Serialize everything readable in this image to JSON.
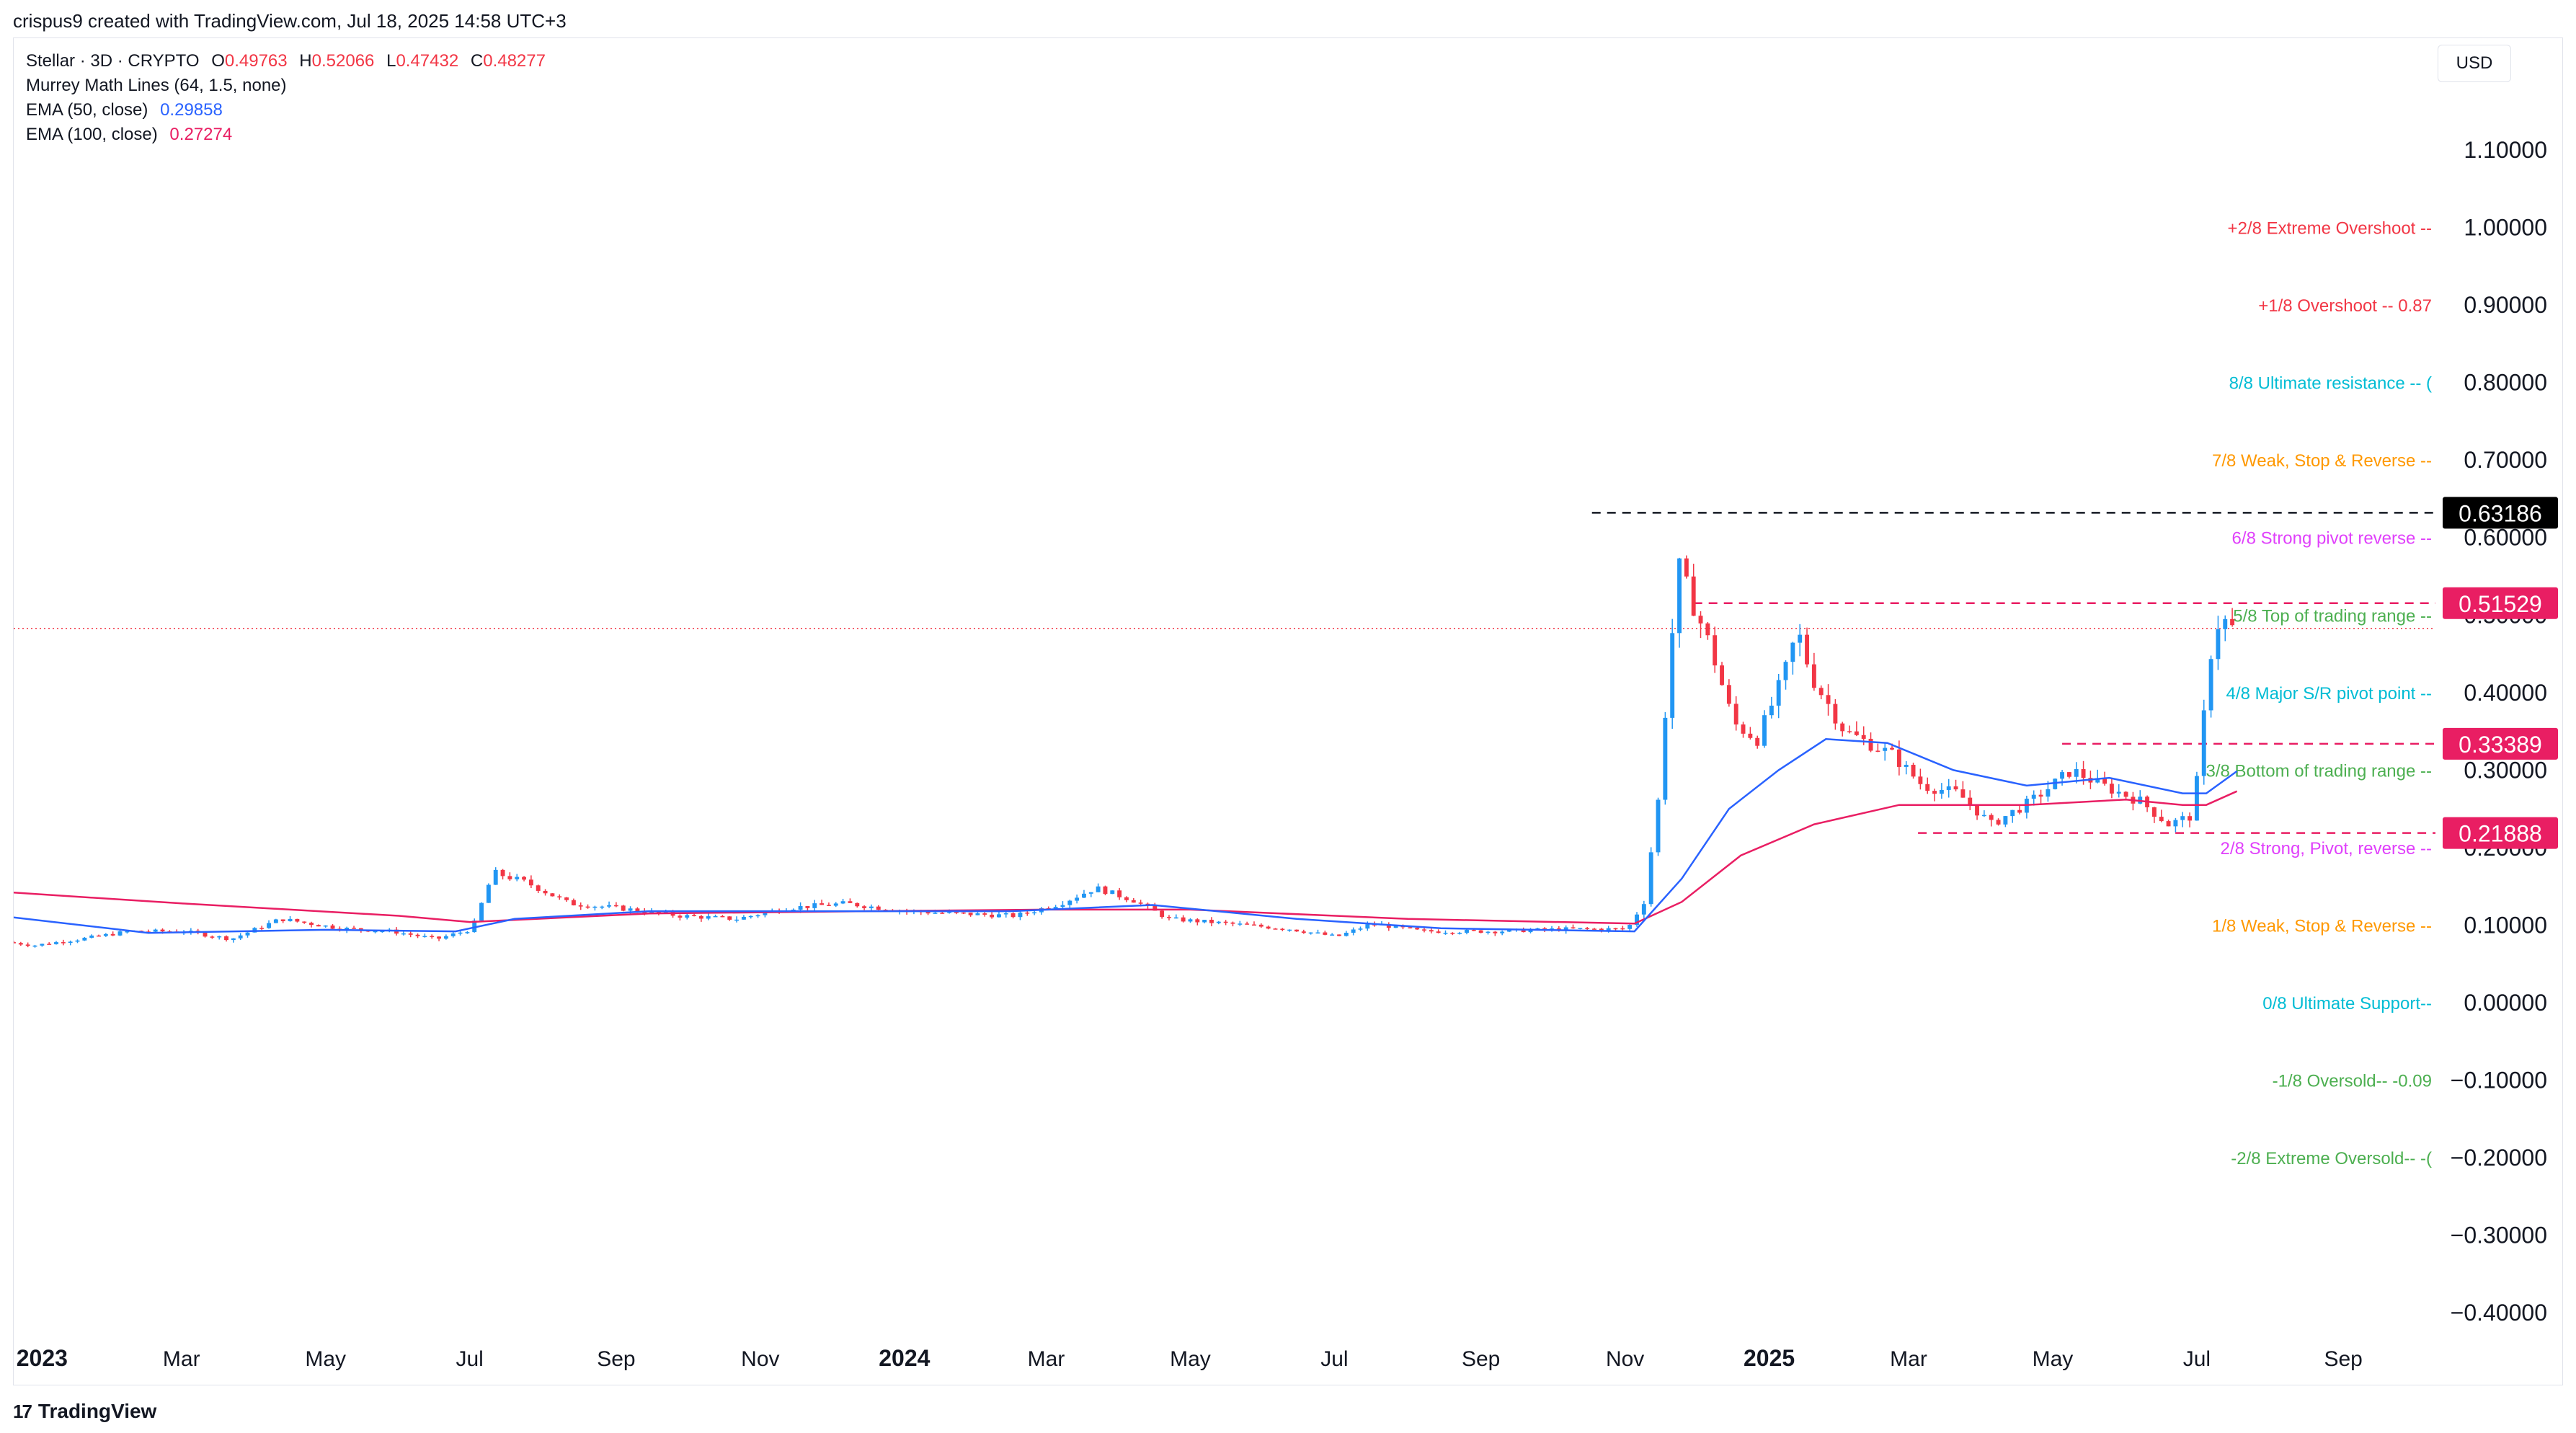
{
  "header": {
    "text": "crispus9 created with TradingView.com, Jul 18, 2025 14:58 UTC+3"
  },
  "legend": {
    "symbol": {
      "label": "Stellar · 3D · CRYPTO",
      "o_label": "O",
      "o": "0.49763",
      "h_label": "H",
      "h": "0.52066",
      "l_label": "L",
      "l": "0.47432",
      "c_label": "C",
      "c": "0.48277"
    },
    "murrey": {
      "label": "Murrey Math Lines (64, 1.5, none)"
    },
    "ema50": {
      "label": "EMA (50, close)",
      "value": "0.29858",
      "color": "#2962ff"
    },
    "ema100": {
      "label": "EMA (100, close)",
      "value": "0.27274",
      "color": "#e91e63"
    }
  },
  "currency": "USD",
  "footer": {
    "logo": "17",
    "brand": "TradingView"
  },
  "chart_data": {
    "type": "candlestick",
    "y_range": [
      -0.43,
      1.2
    ],
    "y_ticks": [
      "1.10000",
      "1.00000",
      "0.90000",
      "0.80000",
      "0.70000",
      "0.60000",
      "0.50000",
      "0.40000",
      "0.30000",
      "0.20000",
      "0.10000",
      "0.00000",
      "−0.10000",
      "−0.20000",
      "−0.30000",
      "−0.40000"
    ],
    "y_tick_values": [
      1.1,
      1.0,
      0.9,
      0.8,
      0.7,
      0.6,
      0.5,
      0.4,
      0.3,
      0.2,
      0.1,
      0.0,
      -0.1,
      -0.2,
      -0.3,
      -0.4
    ],
    "x_range": [
      "2022-12-20",
      "2025-10-10"
    ],
    "x_ticks": [
      {
        "label": "2023",
        "date": "2023-01-01",
        "bold": true
      },
      {
        "label": "Mar",
        "date": "2023-03-01"
      },
      {
        "label": "May",
        "date": "2023-05-01"
      },
      {
        "label": "Jul",
        "date": "2023-07-01"
      },
      {
        "label": "Sep",
        "date": "2023-09-01"
      },
      {
        "label": "Nov",
        "date": "2023-11-01"
      },
      {
        "label": "2024",
        "date": "2024-01-01",
        "bold": true
      },
      {
        "label": "Mar",
        "date": "2024-03-01"
      },
      {
        "label": "May",
        "date": "2024-05-01"
      },
      {
        "label": "Jul",
        "date": "2024-07-01"
      },
      {
        "label": "Sep",
        "date": "2024-09-01"
      },
      {
        "label": "Nov",
        "date": "2024-11-01"
      },
      {
        "label": "2025",
        "date": "2025-01-01",
        "bold": true
      },
      {
        "label": "Mar",
        "date": "2025-03-01"
      },
      {
        "label": "May",
        "date": "2025-05-01"
      },
      {
        "label": "Jul",
        "date": "2025-07-01"
      },
      {
        "label": "Sep",
        "date": "2025-09-01"
      }
    ],
    "price_points": [
      [
        "2022-12-20",
        0.078
      ],
      [
        "2023-01-01",
        0.074
      ],
      [
        "2023-01-20",
        0.082
      ],
      [
        "2023-02-10",
        0.092
      ],
      [
        "2023-03-05",
        0.092
      ],
      [
        "2023-03-25",
        0.082
      ],
      [
        "2023-04-15",
        0.108
      ],
      [
        "2023-05-10",
        0.096
      ],
      [
        "2023-06-01",
        0.092
      ],
      [
        "2023-06-20",
        0.082
      ],
      [
        "2023-07-05",
        0.095
      ],
      [
        "2023-07-14",
        0.168
      ],
      [
        "2023-07-28",
        0.155
      ],
      [
        "2023-08-15",
        0.128
      ],
      [
        "2023-09-05",
        0.122
      ],
      [
        "2023-10-01",
        0.112
      ],
      [
        "2023-10-25",
        0.108
      ],
      [
        "2023-11-15",
        0.122
      ],
      [
        "2023-12-10",
        0.128
      ],
      [
        "2024-01-05",
        0.118
      ],
      [
        "2024-01-25",
        0.115
      ],
      [
        "2024-02-20",
        0.112
      ],
      [
        "2024-03-10",
        0.128
      ],
      [
        "2024-03-25",
        0.148
      ],
      [
        "2024-04-10",
        0.132
      ],
      [
        "2024-04-25",
        0.108
      ],
      [
        "2024-05-20",
        0.102
      ],
      [
        "2024-06-15",
        0.095
      ],
      [
        "2024-07-05",
        0.085
      ],
      [
        "2024-07-20",
        0.102
      ],
      [
        "2024-08-10",
        0.092
      ],
      [
        "2024-09-10",
        0.092
      ],
      [
        "2024-10-10",
        0.095
      ],
      [
        "2024-11-05",
        0.095
      ],
      [
        "2024-11-12",
        0.13
      ],
      [
        "2024-11-18",
        0.26
      ],
      [
        "2024-11-23",
        0.45
      ],
      [
        "2024-11-27",
        0.56
      ],
      [
        "2024-12-02",
        0.52
      ],
      [
        "2024-12-10",
        0.46
      ],
      [
        "2024-12-20",
        0.36
      ],
      [
        "2024-12-30",
        0.34
      ],
      [
        "2025-01-10",
        0.42
      ],
      [
        "2025-01-16",
        0.48
      ],
      [
        "2025-01-22",
        0.42
      ],
      [
        "2025-02-05",
        0.35
      ],
      [
        "2025-02-25",
        0.32
      ],
      [
        "2025-03-10",
        0.28
      ],
      [
        "2025-03-25",
        0.27
      ],
      [
        "2025-04-08",
        0.23
      ],
      [
        "2025-04-25",
        0.26
      ],
      [
        "2025-05-12",
        0.3
      ],
      [
        "2025-05-25",
        0.28
      ],
      [
        "2025-06-10",
        0.26
      ],
      [
        "2025-06-22",
        0.23
      ],
      [
        "2025-07-01",
        0.24
      ],
      [
        "2025-07-05",
        0.3
      ],
      [
        "2025-07-09",
        0.44
      ],
      [
        "2025-07-14",
        0.5
      ],
      [
        "2025-07-18",
        0.48277
      ]
    ],
    "ema50": [
      [
        "2022-12-20",
        0.11
      ],
      [
        "2023-02-15",
        0.09
      ],
      [
        "2023-05-01",
        0.094
      ],
      [
        "2023-06-25",
        0.092
      ],
      [
        "2023-07-20",
        0.108
      ],
      [
        "2023-09-15",
        0.118
      ],
      [
        "2023-12-01",
        0.118
      ],
      [
        "2024-02-15",
        0.118
      ],
      [
        "2024-04-15",
        0.126
      ],
      [
        "2024-06-15",
        0.108
      ],
      [
        "2024-08-15",
        0.096
      ],
      [
        "2024-11-05",
        0.092
      ],
      [
        "2024-11-25",
        0.16
      ],
      [
        "2024-12-15",
        0.25
      ],
      [
        "2025-01-05",
        0.3
      ],
      [
        "2025-01-25",
        0.34
      ],
      [
        "2025-02-20",
        0.335
      ],
      [
        "2025-03-20",
        0.3
      ],
      [
        "2025-04-20",
        0.28
      ],
      [
        "2025-05-25",
        0.29
      ],
      [
        "2025-06-25",
        0.27
      ],
      [
        "2025-07-05",
        0.27
      ],
      [
        "2025-07-18",
        0.29858
      ]
    ],
    "ema100": [
      [
        "2022-12-20",
        0.142
      ],
      [
        "2023-03-01",
        0.128
      ],
      [
        "2023-06-01",
        0.112
      ],
      [
        "2023-07-01",
        0.104
      ],
      [
        "2023-09-15",
        0.115
      ],
      [
        "2023-12-15",
        0.118
      ],
      [
        "2024-03-01",
        0.12
      ],
      [
        "2024-05-01",
        0.12
      ],
      [
        "2024-08-01",
        0.108
      ],
      [
        "2024-11-05",
        0.102
      ],
      [
        "2024-11-25",
        0.13
      ],
      [
        "2024-12-20",
        0.19
      ],
      [
        "2025-01-20",
        0.23
      ],
      [
        "2025-02-25",
        0.255
      ],
      [
        "2025-03-20",
        0.255
      ],
      [
        "2025-04-20",
        0.255
      ],
      [
        "2025-06-01",
        0.262
      ],
      [
        "2025-06-25",
        0.255
      ],
      [
        "2025-07-05",
        0.255
      ],
      [
        "2025-07-18",
        0.27274
      ]
    ],
    "murrey_levels": [
      {
        "label": "+2/8 Extreme Overshoot --",
        "value": 1.0,
        "color": "#f23645"
      },
      {
        "label": "+1/8 Overshoot --  0.87",
        "value": 0.9,
        "color": "#f23645"
      },
      {
        "label": "8/8 Ultimate resistance --  (",
        "value": 0.8,
        "color": "#00bcd4"
      },
      {
        "label": "7/8 Weak, Stop & Reverse --",
        "value": 0.7,
        "color": "#ff9800"
      },
      {
        "label": "6/8 Strong pivot reverse --",
        "value": 0.6,
        "color": "#e040fb"
      },
      {
        "label": "5/8 Top of trading range --",
        "value": 0.5,
        "color": "#4caf50"
      },
      {
        "label": "4/8 Major S/R pivot point --",
        "value": 0.4,
        "color": "#00bcd4"
      },
      {
        "label": "3/8 Bottom of trading range --",
        "value": 0.3,
        "color": "#4caf50"
      },
      {
        "label": "2/8 Strong, Pivot, reverse --",
        "value": 0.2,
        "color": "#e040fb"
      },
      {
        "label": "1/8 Weak, Stop & Reverse --",
        "value": 0.1,
        "color": "#ff9800"
      },
      {
        "label": "0/8 Ultimate Support--",
        "value": 0.0,
        "color": "#00bcd4"
      },
      {
        "label": "-1/8 Oversold--  -0.09",
        "value": -0.1,
        "color": "#4caf50"
      },
      {
        "label": "-2/8 Extreme Oversold--  -(",
        "value": -0.2,
        "color": "#4caf50"
      }
    ],
    "price_labels": [
      {
        "text": "0.63186",
        "value": 0.63186,
        "bg": "#000000"
      },
      {
        "text": "0.51529",
        "value": 0.51529,
        "bg": "#e91e63"
      },
      {
        "text": "0.33389",
        "value": 0.33389,
        "bg": "#e91e63"
      },
      {
        "text": "0.21888",
        "value": 0.21888,
        "bg": "#e91e63"
      }
    ],
    "horizontal_lines": [
      {
        "value": 0.63186,
        "from": "2024-10-18",
        "to": "2025-10-10",
        "color": "#131722"
      },
      {
        "value": 0.51529,
        "from": "2024-11-30",
        "to": "2025-10-10",
        "color": "#e91e63"
      },
      {
        "value": 0.33389,
        "from": "2025-05-05",
        "to": "2025-10-10",
        "color": "#e91e63"
      },
      {
        "value": 0.21888,
        "from": "2025-03-05",
        "to": "2025-10-10",
        "color": "#e91e63"
      }
    ],
    "last_price": 0.48277,
    "up_color": "#2196f3",
    "down_color": "#f23645",
    "grid": false
  }
}
